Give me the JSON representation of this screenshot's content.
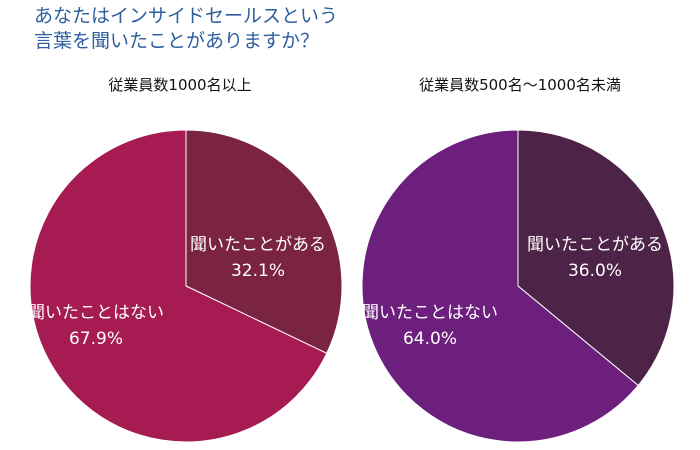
{
  "title": {
    "line1": "あなたはインサイドセールスという",
    "line2": "言葉を聞いたことがありますか？"
  },
  "chart_data": [
    {
      "type": "pie",
      "title": "従業員数1000名以上",
      "slices": [
        {
          "label": "聞いたことがある",
          "value": 32.1,
          "display": "32.1%",
          "color": "#7b2442"
        },
        {
          "label": "聞いたことはない",
          "value": 67.9,
          "display": "67.9%",
          "color": "#a61b52"
        }
      ]
    },
    {
      "type": "pie",
      "title": "従業員数500名～1000名未満",
      "slices": [
        {
          "label": "聞いたことがある",
          "value": 36.0,
          "display": "36.0%",
          "color": "#4d2347"
        },
        {
          "label": "聞いたことはない",
          "value": 64.0,
          "display": "64.0%",
          "color": "#6d1f7e"
        }
      ]
    }
  ]
}
